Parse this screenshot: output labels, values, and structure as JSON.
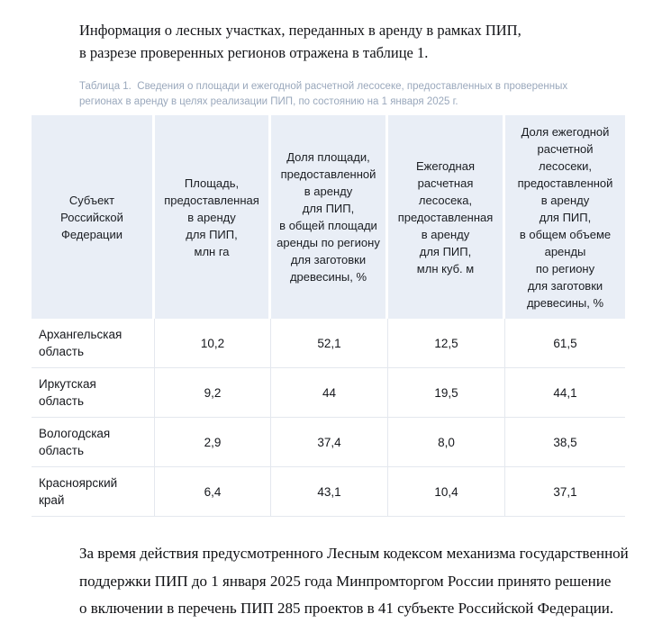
{
  "intro": {
    "lines": [
      "Информация о лесных участках, переданных в аренду в рамках ПИП,",
      "в разрезе проверенных регионов отражена в таблице 1."
    ]
  },
  "caption": {
    "lines": [
      "Таблица 1.  Сведения о площади и ежегодной расчетной лесосеке, предоставленных в проверенных",
      "регионах в аренду в целях реализации ПИП, по состоянию на 1 января 2025 г."
    ]
  },
  "table": {
    "columns": [
      "Субъект\nРоссийской\nФедерации",
      "Площадь,\nпредоставленная\nв аренду\nдля ПИП,\nмлн га",
      "Доля площади,\nпредоставленной\nв аренду\nдля ПИП,\nв общей площади\nаренды по региону\nдля заготовки\nдревесины, %",
      "Ежегодная\nрасчетная\nлесосека,\nпредоставленная\nв аренду\nдля ПИП,\nмлн куб. м",
      "Доля ежегодной\nрасчетной\nлесосеки,\nпредоставленной\nв аренду\nдля ПИП,\nв общем объеме\nаренды\nпо региону\nдля заготовки\nдревесины, %"
    ],
    "rows": [
      {
        "region": "Архангельская\nобласть",
        "values": [
          "10,2",
          "52,1",
          "12,5",
          "61,5"
        ]
      },
      {
        "region": "Иркутская\nобласть",
        "values": [
          "9,2",
          "44",
          "19,5",
          "44,1"
        ]
      },
      {
        "region": "Вологодская\nобласть",
        "values": [
          "2,9",
          "37,4",
          "8,0",
          "38,5"
        ]
      },
      {
        "region": "Красноярский\nкрай",
        "values": [
          "6,4",
          "43,1",
          "10,4",
          "37,1"
        ]
      }
    ]
  },
  "closing": {
    "lines": [
      "За время действия предусмотренного Лесным кодексом механизма государственной",
      "поддержки ПИП до 1 января 2025 года Минпромторгом России принято решение",
      "о включении в перечень ПИП 285 проектов в 41 субъекте Российской Федерации."
    ]
  },
  "colors": {
    "header_bg": "#e9eef6",
    "table_border": "#e4e8ee",
    "caption_text": "#9aa8bc",
    "body_text": "#121317"
  }
}
